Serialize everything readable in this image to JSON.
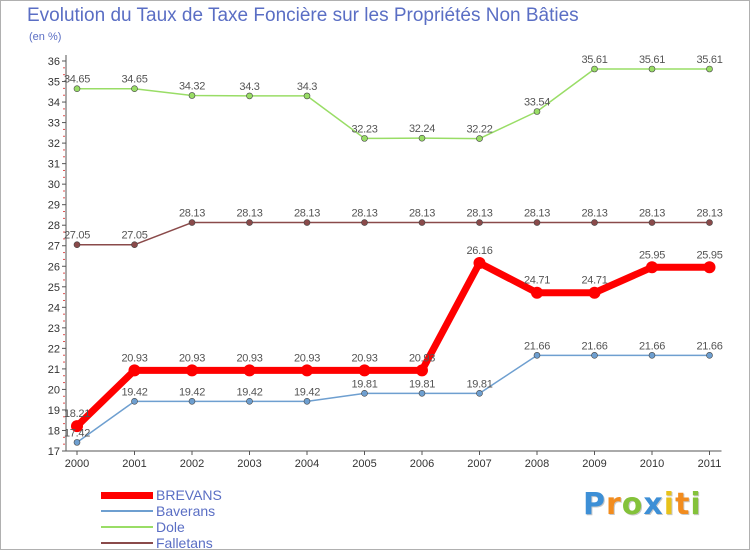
{
  "chart_data": {
    "type": "line",
    "title": "Evolution du Taux de Taxe Foncière sur les Propriétés Non Bâties",
    "ylabel": "(en %)",
    "xlabel": "",
    "categories": [
      "2000",
      "2001",
      "2002",
      "2003",
      "2004",
      "2005",
      "2006",
      "2007",
      "2008",
      "2009",
      "2010",
      "2011"
    ],
    "ylim": [
      17,
      36
    ],
    "yticks": [
      17,
      18,
      19,
      20,
      21,
      22,
      23,
      24,
      25,
      26,
      27,
      28,
      29,
      30,
      31,
      32,
      33,
      34,
      35,
      36
    ],
    "grid": false,
    "legend_position": "bottom-left",
    "series": [
      {
        "name": "BREVANS",
        "color": "#ff0000",
        "emphasis": true,
        "values": [
          18.21,
          20.93,
          20.93,
          20.93,
          20.93,
          20.93,
          20.93,
          26.16,
          24.71,
          24.71,
          25.95,
          25.95
        ],
        "labels": [
          "18.21",
          "20.93",
          "20.93",
          "20.93",
          "20.93",
          "20.93",
          "20.93",
          "26.16",
          "24.71",
          "24.71",
          "25.95",
          "25.95"
        ]
      },
      {
        "name": "Baverans",
        "color": "#6e9fd0",
        "values": [
          17.42,
          19.42,
          19.42,
          19.42,
          19.42,
          19.81,
          19.81,
          19.81,
          21.66,
          21.66,
          21.66,
          21.66
        ],
        "labels": [
          "17.42",
          "19.42",
          "19.42",
          "19.42",
          "19.42",
          "19.81",
          "19.81",
          "19.81",
          "21.66",
          "21.66",
          "21.66",
          "21.66"
        ]
      },
      {
        "name": "Dole",
        "color": "#99dd66",
        "values": [
          34.65,
          34.65,
          34.32,
          34.3,
          34.3,
          32.23,
          32.24,
          32.22,
          33.54,
          35.61,
          35.61,
          35.61
        ],
        "labels": [
          "34.65",
          "34.65",
          "34.32",
          "34.3",
          "34.3",
          "32.23",
          "32.24",
          "32.22",
          "33.54",
          "35.61",
          "35.61",
          "35.61"
        ]
      },
      {
        "name": "Falletans",
        "color": "#8a4a4a",
        "values": [
          27.05,
          27.05,
          28.13,
          28.13,
          28.13,
          28.13,
          28.13,
          28.13,
          28.13,
          28.13,
          28.13,
          28.13
        ],
        "labels": [
          "27.05",
          "27.05",
          "28.13",
          "28.13",
          "28.13",
          "28.13",
          "28.13",
          "28.13",
          "28.13",
          "28.13",
          "28.13",
          "28.13"
        ]
      }
    ]
  },
  "brand": {
    "letters": [
      "P",
      "r",
      "o",
      "x",
      "i",
      "t",
      "i"
    ],
    "colors": [
      "#3d8fd6",
      "#f28c1e",
      "#84c23a",
      "#3d8fd6",
      "#e8c21a",
      "#f28c1e",
      "#84c23a"
    ]
  }
}
